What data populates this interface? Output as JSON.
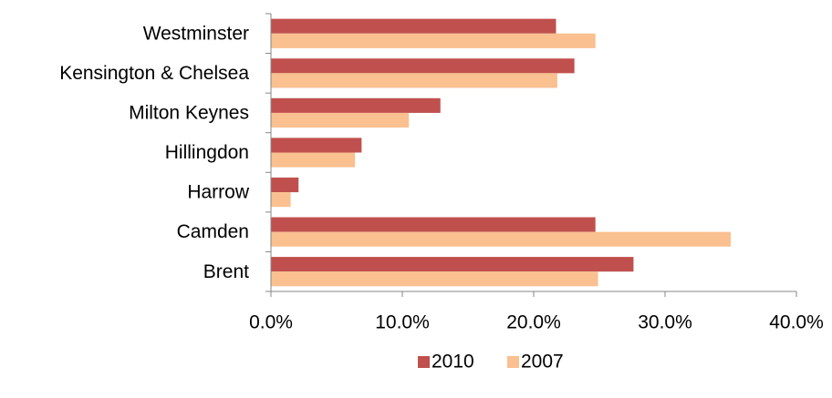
{
  "chart_data": {
    "type": "hbar",
    "categories": [
      "Westminster",
      "Kensington & Chelsea",
      "Milton Keynes",
      "Hillingdon",
      "Harrow",
      "Camden",
      "Brent"
    ],
    "series": [
      {
        "name": "2010",
        "color": "#c0504d",
        "values": [
          21.7,
          23.1,
          12.9,
          6.9,
          2.1,
          24.7,
          27.6
        ]
      },
      {
        "name": "2007",
        "color": "#fac090",
        "values": [
          24.7,
          21.8,
          10.5,
          6.4,
          1.5,
          35.0,
          24.9
        ]
      }
    ],
    "xlim": [
      0,
      40
    ],
    "xticks": [
      {
        "value": 0,
        "label": "0.0%"
      },
      {
        "value": 10,
        "label": "10.0%"
      },
      {
        "value": 20,
        "label": "20.0%"
      },
      {
        "value": 30,
        "label": "30.0%"
      },
      {
        "value": 40,
        "label": "40.0%"
      }
    ],
    "grid": false,
    "legend": "bottom"
  }
}
